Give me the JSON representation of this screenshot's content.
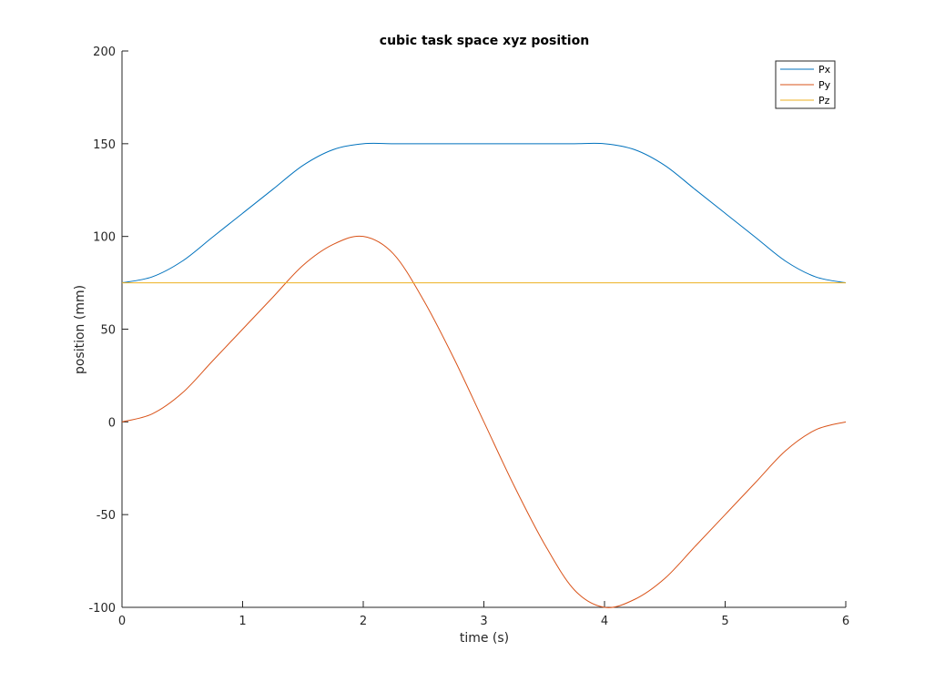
{
  "chart_data": {
    "type": "line",
    "title": "cubic task space xyz position",
    "xlabel": "time (s)",
    "ylabel": "position (mm)",
    "xlim": [
      0,
      6
    ],
    "ylim": [
      -100,
      200
    ],
    "xticks": [
      "0",
      "1",
      "2",
      "3",
      "4",
      "5",
      "6"
    ],
    "yticks": [
      "-100",
      "-50",
      "0",
      "50",
      "100",
      "150",
      "200"
    ],
    "grid": false,
    "legend_position": "top-right",
    "x": [
      0,
      0.25,
      0.5,
      0.75,
      1,
      1.25,
      1.5,
      1.75,
      2,
      2.25,
      2.5,
      2.75,
      3,
      3.25,
      3.5,
      3.75,
      4,
      4.25,
      4.5,
      4.75,
      5,
      5.25,
      5.5,
      5.75,
      6
    ],
    "series": [
      {
        "name": "Px",
        "color": "#0072BD",
        "values": [
          75,
          78.2,
          86.7,
          99.6,
          112.5,
          125.4,
          138.3,
          146.8,
          150,
          150,
          150,
          150,
          150,
          150,
          150,
          150,
          150,
          146.8,
          138.3,
          125.4,
          112.5,
          99.6,
          86.7,
          78.2,
          75
        ]
      },
      {
        "name": "Py",
        "color": "#D95319",
        "values": [
          0,
          4.3,
          15.6,
          32.8,
          50,
          67.2,
          84.4,
          95.7,
          100,
          90.6,
          65.6,
          34.4,
          0,
          -34.4,
          -65.6,
          -90.6,
          -100,
          -95.7,
          -84.4,
          -67.2,
          -50,
          -32.8,
          -15.6,
          -4.3,
          0
        ]
      },
      {
        "name": "Pz",
        "color": "#EDB120",
        "values": [
          75,
          75,
          75,
          75,
          75,
          75,
          75,
          75,
          75,
          75,
          75,
          75,
          75,
          75,
          75,
          75,
          75,
          75,
          75,
          75,
          75,
          75,
          75,
          75,
          75
        ]
      }
    ]
  }
}
